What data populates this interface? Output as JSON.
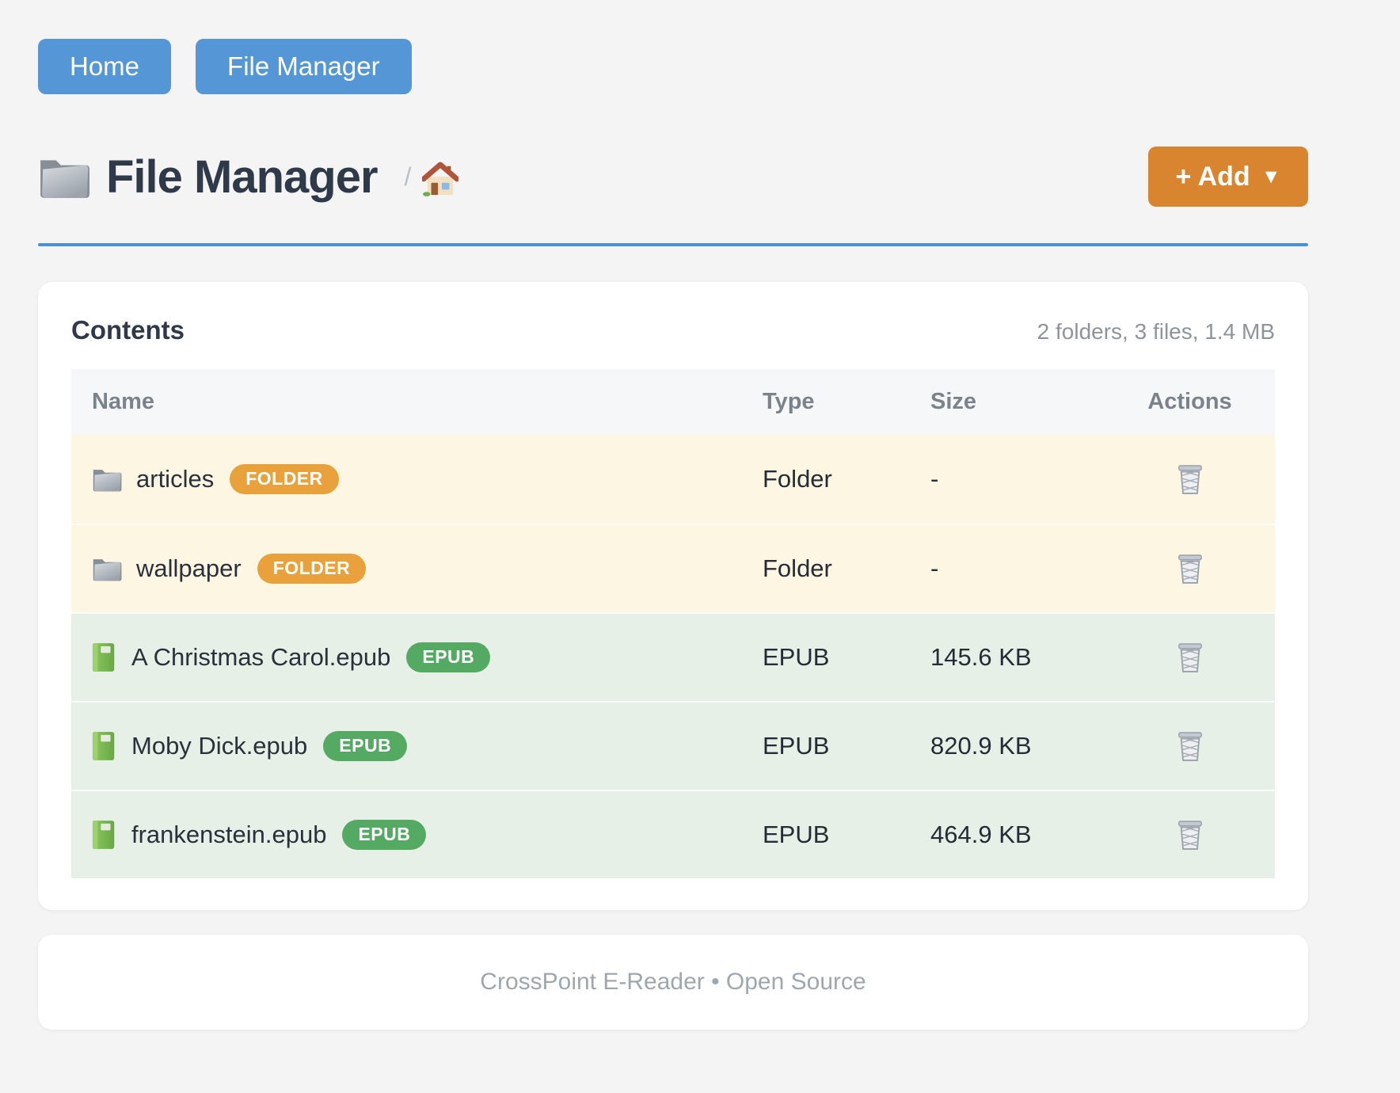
{
  "nav": {
    "buttons": [
      {
        "label": "Home"
      },
      {
        "label": "File Manager"
      }
    ]
  },
  "header": {
    "title": "File Manager",
    "title_icon": "folder-icon",
    "breadcrumb_separator": "/",
    "breadcrumb_home_icon": "house-icon",
    "add_button_label": "+ Add",
    "add_button_caret": "▼"
  },
  "contents": {
    "heading": "Contents",
    "summary": "2 folders, 3 files, 1.4 MB",
    "columns": [
      "Name",
      "Type",
      "Size",
      "Actions"
    ],
    "rows": [
      {
        "name": "articles",
        "icon": "folder-icon",
        "badge": "FOLDER",
        "kind": "folder",
        "type": "Folder",
        "size": "-",
        "action_icon": "trash-icon"
      },
      {
        "name": "wallpaper",
        "icon": "folder-icon",
        "badge": "FOLDER",
        "kind": "folder",
        "type": "Folder",
        "size": "-",
        "action_icon": "trash-icon"
      },
      {
        "name": "A Christmas Carol.epub",
        "icon": "book-icon",
        "badge": "EPUB",
        "kind": "epub",
        "type": "EPUB",
        "size": "145.6 KB",
        "action_icon": "trash-icon"
      },
      {
        "name": "Moby Dick.epub",
        "icon": "book-icon",
        "badge": "EPUB",
        "kind": "epub",
        "type": "EPUB",
        "size": "820.9 KB",
        "action_icon": "trash-icon"
      },
      {
        "name": "frankenstein.epub",
        "icon": "book-icon",
        "badge": "EPUB",
        "kind": "epub",
        "type": "EPUB",
        "size": "464.9 KB",
        "action_icon": "trash-icon"
      }
    ]
  },
  "footer": {
    "text": "CrossPoint E-Reader • Open Source"
  },
  "colors": {
    "page-bg": "#f4f4f5",
    "primary-blue": "#5596d6",
    "divider-blue": "#4a90d5",
    "add-orange": "#d9842e",
    "badge-folder-orange": "#e9a23b",
    "badge-epub-green": "#55aa63",
    "row-folder-bg": "#fdf6e2",
    "row-epub-bg": "#e6f0e7",
    "muted-gray": "#8d949c"
  }
}
